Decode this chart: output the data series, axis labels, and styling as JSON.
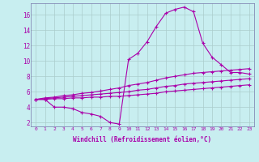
{
  "xlabel": "Windchill (Refroidissement éolien,°C)",
  "background_color": "#c8eef0",
  "line_color": "#aa00aa",
  "grid_color": "#aacccc",
  "xlim": [
    -0.5,
    23.5
  ],
  "ylim": [
    1.5,
    17.5
  ],
  "yticks": [
    2,
    4,
    6,
    8,
    10,
    12,
    14,
    16
  ],
  "xticks": [
    0,
    1,
    2,
    3,
    4,
    5,
    6,
    7,
    8,
    9,
    10,
    11,
    12,
    13,
    14,
    15,
    16,
    17,
    18,
    19,
    20,
    21,
    22,
    23
  ],
  "series": [
    [
      5.0,
      5.0,
      4.0,
      4.0,
      3.8,
      3.3,
      3.1,
      2.8,
      2.0,
      1.8,
      10.2,
      11.0,
      12.5,
      14.5,
      16.2,
      16.7,
      17.0,
      16.4,
      12.3,
      10.5,
      9.5,
      8.5,
      8.5,
      8.3
    ],
    [
      5.0,
      5.2,
      5.3,
      5.5,
      5.6,
      5.8,
      5.9,
      6.1,
      6.3,
      6.5,
      6.8,
      7.0,
      7.2,
      7.5,
      7.8,
      8.0,
      8.2,
      8.4,
      8.5,
      8.6,
      8.7,
      8.8,
      8.9,
      9.0
    ],
    [
      5.0,
      5.1,
      5.2,
      5.3,
      5.4,
      5.5,
      5.6,
      5.7,
      5.8,
      5.9,
      6.0,
      6.2,
      6.3,
      6.5,
      6.7,
      6.8,
      7.0,
      7.1,
      7.2,
      7.3,
      7.4,
      7.5,
      7.6,
      7.7
    ],
    [
      5.0,
      5.0,
      5.1,
      5.1,
      5.2,
      5.2,
      5.3,
      5.3,
      5.4,
      5.4,
      5.5,
      5.6,
      5.7,
      5.8,
      6.0,
      6.1,
      6.2,
      6.3,
      6.4,
      6.5,
      6.6,
      6.7,
      6.8,
      6.9
    ]
  ],
  "marker": "+",
  "markersize": 3,
  "linewidth": 0.8
}
